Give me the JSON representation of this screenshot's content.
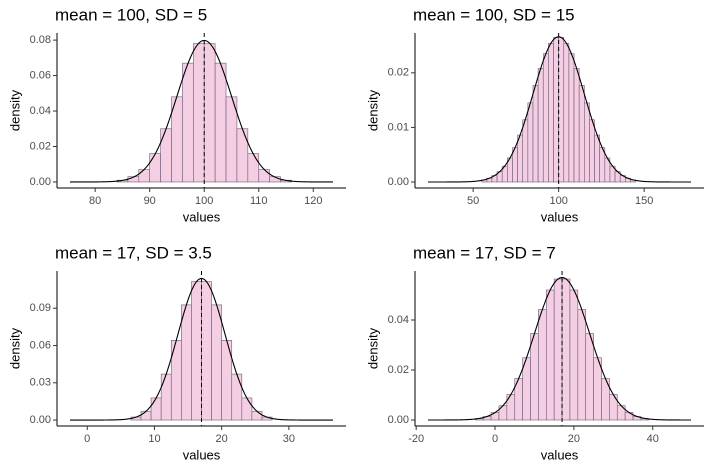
{
  "chart_data": [
    {
      "type": "histogram",
      "title": "mean = 100, SD = 5",
      "x_label": "values",
      "y_label": "density",
      "mean": 100,
      "sd": 5,
      "color": "#f4cfe3",
      "bins": [
        82,
        84,
        86,
        88,
        90,
        92,
        94,
        96,
        98,
        100,
        102,
        104,
        106,
        108,
        110,
        112,
        114,
        116,
        118
      ],
      "values": [
        0.0,
        0.001,
        0.003,
        0.007,
        0.016,
        0.03,
        0.048,
        0.067,
        0.078,
        0.078,
        0.067,
        0.048,
        0.03,
        0.016,
        0.007,
        0.003,
        0.001,
        0.0
      ],
      "xlim": [
        73,
        126
      ],
      "ylim": [
        -0.0034,
        0.084
      ],
      "xticks": [
        80,
        90,
        100,
        110,
        120
      ],
      "yticks": [
        {
          "value": 0,
          "label": "0.00"
        },
        0.02,
        0.04,
        0.06,
        0.08
      ]
    },
    {
      "type": "histogram",
      "title": "mean = 100, SD = 15",
      "x_label": "values",
      "y_label": "density",
      "mean": 100,
      "sd": 15,
      "color": "#f4cfe3",
      "bins": [
        55,
        58,
        61,
        64,
        67,
        70,
        73,
        76,
        79,
        82,
        85,
        88,
        91,
        94,
        97,
        100,
        103,
        106,
        109,
        112,
        115,
        118,
        121,
        124,
        127,
        130,
        133,
        136,
        139,
        142,
        145
      ],
      "values": [
        0.0004,
        0.0007,
        0.0012,
        0.0019,
        0.0029,
        0.0044,
        0.0063,
        0.0086,
        0.0114,
        0.0145,
        0.0177,
        0.0208,
        0.0235,
        0.0254,
        0.0265,
        0.0265,
        0.0254,
        0.0235,
        0.0208,
        0.0177,
        0.0145,
        0.0114,
        0.0086,
        0.0063,
        0.0044,
        0.0029,
        0.0019,
        0.0012,
        0.0007,
        0.0004
      ],
      "xlim": [
        16,
        185
      ],
      "ylim": [
        -0.0011,
        0.0273
      ],
      "xticks": [
        50,
        100,
        150
      ],
      "yticks": [
        {
          "value": 0,
          "label": "0.00"
        },
        0.01,
        0.02
      ]
    },
    {
      "type": "histogram",
      "title": "mean = 17, SD = 3.5",
      "x_label": "values",
      "y_label": "density",
      "mean": 17,
      "sd": 3.5,
      "color": "#f4cfe3",
      "bins": [
        6.5,
        8,
        9.5,
        11,
        12.5,
        14,
        15.5,
        17,
        18.5,
        20,
        21.5,
        23,
        24.5,
        26,
        27.5
      ],
      "values": [
        0.0024,
        0.0071,
        0.0178,
        0.037,
        0.0642,
        0.0927,
        0.1114,
        0.1114,
        0.0927,
        0.0642,
        0.037,
        0.0178,
        0.0071,
        0.0024
      ],
      "xlim": [
        -4.5,
        38.5
      ],
      "ylim": [
        -0.0048,
        0.12
      ],
      "xticks": [
        0,
        10,
        20,
        30
      ],
      "yticks": [
        {
          "value": 0,
          "label": "0.00"
        },
        0.03,
        0.06,
        0.09
      ]
    },
    {
      "type": "histogram",
      "title": "mean = 17, SD = 7",
      "x_label": "values",
      "y_label": "density",
      "mean": 17,
      "sd": 7,
      "color": "#f4cfe3",
      "bins": [
        -5,
        -3,
        -1,
        1,
        3,
        5,
        7,
        9,
        11,
        13,
        15,
        17,
        19,
        21,
        23,
        25,
        27,
        29,
        31,
        33,
        35,
        37,
        39
      ],
      "values": [
        0.0006,
        0.0014,
        0.003,
        0.0057,
        0.0102,
        0.0166,
        0.0249,
        0.0346,
        0.0442,
        0.052,
        0.0564,
        0.0564,
        0.052,
        0.0442,
        0.0346,
        0.0249,
        0.0166,
        0.0102,
        0.0057,
        0.003,
        0.0014,
        0.0006
      ],
      "xlim": [
        -20.3,
        53
      ],
      "ylim": [
        -0.0024,
        0.0596
      ],
      "xticks": [
        -20,
        0,
        20,
        40
      ],
      "yticks": [
        {
          "value": 0,
          "label": "0.00"
        },
        0.02,
        0.04
      ]
    }
  ]
}
